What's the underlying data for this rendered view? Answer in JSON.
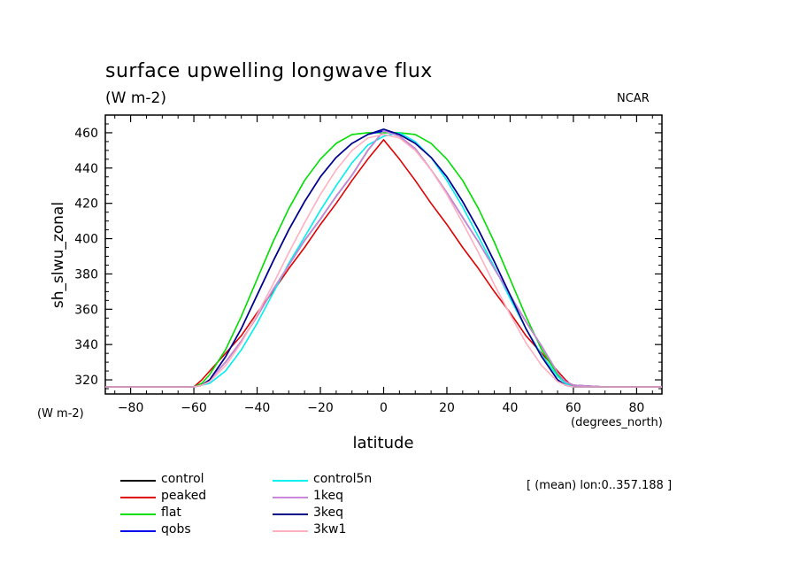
{
  "header": {
    "title": "surface upwelling longwave flux",
    "subtitle": "(W m-2)",
    "credit": "NCAR",
    "ylabel_unit": "(W m-2)",
    "xlabel_unit": "(degrees_north)",
    "region_note": "[ (mean) lon:0..357.188 ]"
  },
  "chart_data": {
    "type": "line",
    "title": "surface upwelling longwave flux",
    "subtitle": "(W m-2)",
    "xlabel": "latitude",
    "ylabel": "sh_slwu_zonal",
    "xlim": [
      -88,
      88
    ],
    "ylim": [
      312,
      470
    ],
    "xticks": [
      -80,
      -60,
      -40,
      -20,
      0,
      20,
      40,
      60,
      80
    ],
    "xtick_labels": [
      "−80",
      "−60",
      "−40",
      "−20",
      "0",
      "20",
      "40",
      "60",
      "80"
    ],
    "yticks": [
      320,
      340,
      360,
      380,
      400,
      420,
      440,
      460
    ],
    "grid": false,
    "legend_position": "bottom-left",
    "x": [
      -88,
      -80,
      -70,
      -60,
      -57.5,
      -55,
      -50,
      -45,
      -40,
      -35,
      -30,
      -25,
      -20,
      -15,
      -10,
      -5,
      0,
      5,
      10,
      15,
      20,
      25,
      30,
      35,
      40,
      45,
      50,
      55,
      57.5,
      60,
      70,
      80,
      88
    ],
    "series": [
      {
        "name": "control",
        "color": "#000000",
        "values": [
          316,
          316,
          316,
          316,
          317,
          320,
          330,
          342,
          356,
          371,
          385,
          399,
          411,
          424,
          436,
          450,
          461,
          458,
          451,
          439,
          426,
          412,
          398,
          383,
          368,
          353,
          339,
          324,
          319,
          317,
          316,
          316,
          316
        ]
      },
      {
        "name": "peaked",
        "color": "#e00000",
        "values": [
          316,
          316,
          316,
          316,
          320,
          325,
          335,
          345,
          358,
          370,
          383,
          395,
          408,
          420,
          433,
          445,
          456,
          445,
          433,
          420,
          408,
          395,
          383,
          370,
          358,
          345,
          335,
          325,
          320,
          316,
          316,
          316,
          316
        ]
      },
      {
        "name": "flat",
        "color": "#00dd00",
        "values": [
          316,
          316,
          316,
          316,
          318,
          323,
          337,
          356,
          377,
          398,
          417,
          433,
          445,
          454,
          459,
          460,
          460,
          460,
          459,
          454,
          445,
          433,
          417,
          398,
          377,
          356,
          337,
          323,
          318,
          316,
          316,
          316,
          316
        ]
      },
      {
        "name": "qobs",
        "color": "#0000ee",
        "values": [
          316,
          316,
          316,
          316,
          317,
          320,
          333,
          349,
          368,
          387,
          405,
          421,
          435,
          446,
          454,
          459,
          461,
          459,
          454,
          446,
          435,
          421,
          405,
          387,
          368,
          349,
          333,
          320,
          317,
          316,
          316,
          316,
          316
        ]
      },
      {
        "name": "control5n",
        "color": "#00eeee",
        "values": [
          316,
          316,
          316,
          316,
          317,
          318,
          325,
          337,
          352,
          369,
          386,
          401,
          416,
          430,
          443,
          453,
          458,
          460,
          455,
          446,
          433,
          418,
          401,
          384,
          366,
          349,
          334,
          322,
          318,
          316,
          316,
          316,
          316
        ]
      },
      {
        "name": "1keq",
        "color": "#cc88dd",
        "values": [
          316,
          316,
          316,
          316,
          317,
          320,
          330,
          342,
          356,
          371,
          385,
          399,
          411,
          424,
          436,
          450,
          461,
          458,
          451,
          439,
          426,
          412,
          398,
          383,
          368,
          353,
          339,
          324,
          319,
          317,
          316,
          316,
          316
        ]
      },
      {
        "name": "3keq",
        "color": "#000088",
        "values": [
          316,
          316,
          316,
          316,
          317,
          320,
          333,
          349,
          368,
          387,
          405,
          421,
          435,
          446,
          454,
          459,
          462,
          459,
          454,
          446,
          435,
          421,
          405,
          387,
          368,
          349,
          333,
          320,
          317,
          316,
          316,
          316,
          316
        ]
      },
      {
        "name": "3kw1",
        "color": "#ffb0c0",
        "values": [
          316,
          316,
          316,
          316,
          317,
          319,
          328,
          341,
          357,
          374,
          392,
          409,
          425,
          439,
          450,
          457,
          459,
          457,
          450,
          439,
          425,
          409,
          392,
          374,
          357,
          341,
          328,
          319,
          317,
          316,
          316,
          316,
          316
        ]
      }
    ]
  }
}
